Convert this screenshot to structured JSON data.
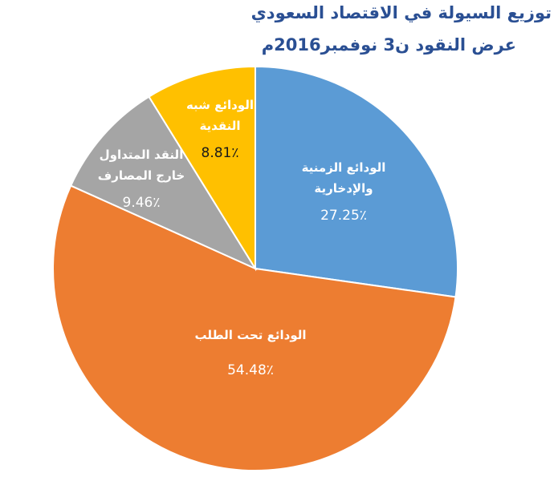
{
  "chart_data": {
    "type": "pie",
    "title": "توزيع السيولة في الاقتصاد السعودي",
    "subtitle": "عرض النقود ن3 نوفمبر2016م",
    "slices": [
      {
        "label_lines": [
          "الودائع الزمنية",
          "والإدخارية"
        ],
        "value": 27.25,
        "value_label": "27.25٪",
        "color": "#5b9bd5",
        "text_color": "#ffffff"
      },
      {
        "label_lines": [
          "الودائع تحت الطلب"
        ],
        "value": 54.48,
        "value_label": "54.48٪",
        "color": "#ed7d31",
        "text_color": "#ffffff"
      },
      {
        "label_lines": [
          "النقد المتداول",
          "خارج المصارف"
        ],
        "value": 9.46,
        "value_label": "9.46٪",
        "color": "#a5a5a5",
        "text_color": "#ffffff"
      },
      {
        "label_lines": [
          "الودائع شبه",
          "النقدية"
        ],
        "value": 8.81,
        "value_label": "8.81٪",
        "color": "#ffc000",
        "text_color": "#ffffff",
        "value_color": "#1a1a1a"
      }
    ],
    "start": "top",
    "direction": "clockwise",
    "slice_border_color": "#ffffff"
  }
}
